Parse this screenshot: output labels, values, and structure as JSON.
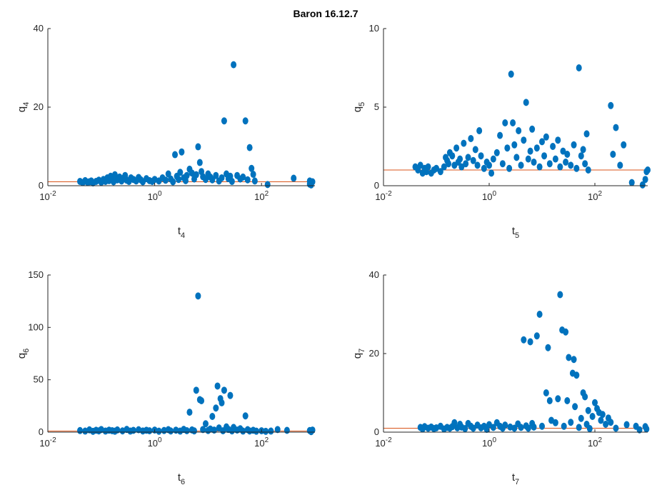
{
  "suptitle": "Baron 16.12.7",
  "colors": {
    "points": "#0072BD",
    "refline": "#D95319",
    "axis": "#262626"
  },
  "chart_data": [
    {
      "type": "scatter",
      "xlabel": {
        "base": "t",
        "sub": "4"
      },
      "ylabel": {
        "base": "q",
        "sub": "4"
      },
      "xscale": "log",
      "xlim": [
        0.01,
        1000
      ],
      "ylim": [
        0,
        40
      ],
      "yticks": [
        "0",
        "20",
        "40"
      ],
      "xticks": [
        {
          "base": "10",
          "exp": "-2"
        },
        {
          "base": "10",
          "exp": "0"
        },
        {
          "base": "10",
          "exp": "2"
        }
      ],
      "reference_y": 1,
      "points": [
        [
          0.04,
          1.1
        ],
        [
          0.045,
          0.8
        ],
        [
          0.05,
          1.3
        ],
        [
          0.055,
          0.9
        ],
        [
          0.06,
          1.0
        ],
        [
          0.065,
          1.2
        ],
        [
          0.07,
          0.7
        ],
        [
          0.08,
          1.1
        ],
        [
          0.09,
          1.4
        ],
        [
          0.1,
          0.9
        ],
        [
          0.11,
          1.6
        ],
        [
          0.12,
          1.1
        ],
        [
          0.13,
          2.0
        ],
        [
          0.14,
          1.3
        ],
        [
          0.15,
          2.4
        ],
        [
          0.16,
          1.7
        ],
        [
          0.17,
          1.0
        ],
        [
          0.18,
          2.8
        ],
        [
          0.2,
          1.5
        ],
        [
          0.22,
          2.2
        ],
        [
          0.24,
          1.2
        ],
        [
          0.26,
          1.9
        ],
        [
          0.28,
          2.6
        ],
        [
          0.3,
          1.4
        ],
        [
          0.33,
          1.1
        ],
        [
          0.36,
          2.0
        ],
        [
          0.4,
          1.6
        ],
        [
          0.45,
          1.2
        ],
        [
          0.5,
          2.1
        ],
        [
          0.55,
          1.5
        ],
        [
          0.6,
          1.0
        ],
        [
          0.7,
          1.8
        ],
        [
          0.8,
          1.3
        ],
        [
          0.9,
          1.1
        ],
        [
          1.0,
          1.6
        ],
        [
          1.2,
          1.2
        ],
        [
          1.4,
          2.0
        ],
        [
          1.6,
          1.4
        ],
        [
          1.8,
          3.0
        ],
        [
          2.0,
          1.7
        ],
        [
          2.2,
          1.0
        ],
        [
          2.4,
          7.9
        ],
        [
          2.6,
          2.4
        ],
        [
          2.8,
          1.6
        ],
        [
          3.0,
          3.4
        ],
        [
          3.2,
          8.6
        ],
        [
          3.5,
          2.0
        ],
        [
          3.8,
          1.3
        ],
        [
          4.0,
          2.6
        ],
        [
          4.5,
          4.2
        ],
        [
          5.0,
          3.2
        ],
        [
          5.5,
          1.7
        ],
        [
          6.0,
          2.8
        ],
        [
          6.5,
          9.9
        ],
        [
          7.0,
          5.9
        ],
        [
          7.5,
          3.6
        ],
        [
          8.0,
          2.3
        ],
        [
          9.0,
          1.6
        ],
        [
          10,
          3.0
        ],
        [
          11,
          2.2
        ],
        [
          12,
          1.5
        ],
        [
          14,
          2.6
        ],
        [
          16,
          1.2
        ],
        [
          18,
          2.0
        ],
        [
          20,
          16.5
        ],
        [
          22,
          3.0
        ],
        [
          24,
          1.8
        ],
        [
          26,
          2.4
        ],
        [
          28,
          1.1
        ],
        [
          30,
          30.8
        ],
        [
          35,
          2.6
        ],
        [
          40,
          1.7
        ],
        [
          45,
          2.2
        ],
        [
          50,
          16.5
        ],
        [
          55,
          1.5
        ],
        [
          60,
          9.7
        ],
        [
          65,
          4.4
        ],
        [
          70,
          2.9
        ],
        [
          75,
          1.2
        ],
        [
          130,
          0.3
        ],
        [
          400,
          1.9
        ],
        [
          800,
          1.2
        ],
        [
          800,
          0.4
        ],
        [
          850,
          0.2
        ],
        [
          900,
          1.0
        ]
      ]
    },
    {
      "type": "scatter",
      "xlabel": {
        "base": "t",
        "sub": "5"
      },
      "ylabel": {
        "base": "q",
        "sub": "5"
      },
      "xscale": "log",
      "xlim": [
        0.01,
        1000
      ],
      "ylim": [
        0,
        10
      ],
      "yticks": [
        "0",
        "5",
        "10"
      ],
      "xticks": [
        {
          "base": "10",
          "exp": "-2"
        },
        {
          "base": "10",
          "exp": "0"
        },
        {
          "base": "10",
          "exp": "2"
        }
      ],
      "reference_y": 1,
      "points": [
        [
          0.04,
          1.2
        ],
        [
          0.045,
          1.0
        ],
        [
          0.05,
          1.3
        ],
        [
          0.055,
          0.8
        ],
        [
          0.06,
          1.1
        ],
        [
          0.065,
          0.9
        ],
        [
          0.07,
          1.2
        ],
        [
          0.08,
          0.8
        ],
        [
          0.09,
          1.0
        ],
        [
          0.1,
          1.1
        ],
        [
          0.12,
          0.9
        ],
        [
          0.14,
          1.2
        ],
        [
          0.15,
          1.8
        ],
        [
          0.16,
          1.6
        ],
        [
          0.17,
          1.4
        ],
        [
          0.18,
          2.1
        ],
        [
          0.2,
          1.9
        ],
        [
          0.22,
          1.3
        ],
        [
          0.24,
          2.4
        ],
        [
          0.26,
          1.5
        ],
        [
          0.28,
          1.7
        ],
        [
          0.3,
          1.2
        ],
        [
          0.33,
          2.7
        ],
        [
          0.36,
          1.4
        ],
        [
          0.4,
          1.8
        ],
        [
          0.45,
          3.0
        ],
        [
          0.5,
          1.6
        ],
        [
          0.55,
          2.3
        ],
        [
          0.6,
          1.3
        ],
        [
          0.65,
          3.5
        ],
        [
          0.7,
          1.9
        ],
        [
          0.8,
          1.1
        ],
        [
          0.9,
          1.5
        ],
        [
          1.0,
          1.3
        ],
        [
          1.1,
          0.8
        ],
        [
          1.2,
          1.7
        ],
        [
          1.4,
          2.1
        ],
        [
          1.6,
          3.2
        ],
        [
          1.8,
          1.4
        ],
        [
          2.0,
          4.0
        ],
        [
          2.2,
          2.4
        ],
        [
          2.4,
          1.1
        ],
        [
          2.6,
          7.1
        ],
        [
          2.8,
          4.0
        ],
        [
          3.0,
          2.6
        ],
        [
          3.3,
          1.8
        ],
        [
          3.6,
          3.5
        ],
        [
          4.0,
          1.3
        ],
        [
          4.5,
          2.9
        ],
        [
          5.0,
          5.3
        ],
        [
          5.5,
          1.7
        ],
        [
          6.0,
          2.2
        ],
        [
          6.5,
          3.6
        ],
        [
          7.0,
          1.5
        ],
        [
          8.0,
          2.4
        ],
        [
          9.0,
          1.2
        ],
        [
          10,
          2.8
        ],
        [
          11,
          1.9
        ],
        [
          12,
          3.1
        ],
        [
          14,
          1.4
        ],
        [
          16,
          2.5
        ],
        [
          18,
          1.7
        ],
        [
          20,
          2.9
        ],
        [
          22,
          1.2
        ],
        [
          25,
          2.2
        ],
        [
          28,
          1.5
        ],
        [
          30,
          2.0
        ],
        [
          35,
          1.3
        ],
        [
          40,
          2.6
        ],
        [
          45,
          1.1
        ],
        [
          50,
          7.5
        ],
        [
          55,
          1.9
        ],
        [
          60,
          2.3
        ],
        [
          65,
          1.4
        ],
        [
          70,
          3.3
        ],
        [
          75,
          1.0
        ],
        [
          200,
          5.1
        ],
        [
          220,
          2.0
        ],
        [
          250,
          3.7
        ],
        [
          300,
          1.3
        ],
        [
          350,
          2.6
        ],
        [
          500,
          0.2
        ],
        [
          800,
          0.05
        ],
        [
          900,
          0.4
        ],
        [
          950,
          0.9
        ],
        [
          1000,
          1.0
        ]
      ]
    },
    {
      "type": "scatter",
      "xlabel": {
        "base": "t",
        "sub": "6"
      },
      "ylabel": {
        "base": "q",
        "sub": "6"
      },
      "xscale": "log",
      "xlim": [
        0.01,
        1000
      ],
      "ylim": [
        0,
        150
      ],
      "yticks": [
        "0",
        "50",
        "100",
        "150"
      ],
      "xticks": [
        {
          "base": "10",
          "exp": "-2"
        },
        {
          "base": "10",
          "exp": "0"
        },
        {
          "base": "10",
          "exp": "2"
        }
      ],
      "reference_y": 1,
      "points": [
        [
          0.04,
          1.5
        ],
        [
          0.05,
          1.0
        ],
        [
          0.06,
          2.2
        ],
        [
          0.07,
          0.8
        ],
        [
          0.08,
          1.8
        ],
        [
          0.09,
          1.2
        ],
        [
          0.1,
          2.5
        ],
        [
          0.12,
          1.0
        ],
        [
          0.14,
          1.9
        ],
        [
          0.16,
          1.4
        ],
        [
          0.18,
          0.9
        ],
        [
          0.2,
          2.1
        ],
        [
          0.25,
          1.2
        ],
        [
          0.3,
          2.6
        ],
        [
          0.35,
          1.0
        ],
        [
          0.4,
          1.7
        ],
        [
          0.5,
          2.3
        ],
        [
          0.6,
          1.1
        ],
        [
          0.7,
          1.8
        ],
        [
          0.8,
          1.3
        ],
        [
          1.0,
          2.0
        ],
        [
          1.2,
          0.9
        ],
        [
          1.5,
          1.6
        ],
        [
          1.8,
          2.4
        ],
        [
          2.0,
          1.1
        ],
        [
          2.5,
          1.9
        ],
        [
          3.0,
          1.0
        ],
        [
          3.5,
          2.6
        ],
        [
          4.0,
          1.4
        ],
        [
          4.5,
          19.0
        ],
        [
          5.0,
          2.1
        ],
        [
          5.5,
          1.2
        ],
        [
          6.0,
          40.0
        ],
        [
          6.5,
          130.0
        ],
        [
          7.0,
          31.0
        ],
        [
          7.5,
          30.0
        ],
        [
          8.0,
          2.5
        ],
        [
          9.0,
          8.0
        ],
        [
          10,
          1.6
        ],
        [
          11,
          3.0
        ],
        [
          12,
          15.0
        ],
        [
          13,
          2.0
        ],
        [
          14,
          23.0
        ],
        [
          15,
          44.0
        ],
        [
          16,
          4.0
        ],
        [
          17,
          32.0
        ],
        [
          18,
          28.0
        ],
        [
          19,
          1.3
        ],
        [
          20,
          40.0
        ],
        [
          22,
          5.0
        ],
        [
          24,
          2.6
        ],
        [
          26,
          35.0
        ],
        [
          28,
          1.2
        ],
        [
          30,
          4.5
        ],
        [
          35,
          2.0
        ],
        [
          40,
          3.2
        ],
        [
          45,
          1.0
        ],
        [
          50,
          15.5
        ],
        [
          55,
          2.4
        ],
        [
          60,
          1.1
        ],
        [
          70,
          1.8
        ],
        [
          80,
          0.9
        ],
        [
          100,
          1.3
        ],
        [
          120,
          0.8
        ],
        [
          150,
          1.0
        ],
        [
          200,
          2.5
        ],
        [
          300,
          1.7
        ],
        [
          800,
          1.5
        ],
        [
          850,
          0.5
        ],
        [
          900,
          2.0
        ]
      ]
    },
    {
      "type": "scatter",
      "xlabel": {
        "base": "t",
        "sub": "7"
      },
      "ylabel": {
        "base": "q",
        "sub": "7"
      },
      "xscale": "log",
      "xlim": [
        0.01,
        1000
      ],
      "ylim": [
        0,
        40
      ],
      "yticks": [
        "0",
        "20",
        "40"
      ],
      "xticks": [
        {
          "base": "10",
          "exp": "-2"
        },
        {
          "base": "10",
          "exp": "0"
        },
        {
          "base": "10",
          "exp": "2"
        }
      ],
      "reference_y": 1,
      "points": [
        [
          0.05,
          1.2
        ],
        [
          0.055,
          0.8
        ],
        [
          0.06,
          1.4
        ],
        [
          0.07,
          1.0
        ],
        [
          0.08,
          1.3
        ],
        [
          0.09,
          0.9
        ],
        [
          0.1,
          1.1
        ],
        [
          0.12,
          1.5
        ],
        [
          0.14,
          0.8
        ],
        [
          0.16,
          1.2
        ],
        [
          0.18,
          1.0
        ],
        [
          0.2,
          1.4
        ],
        [
          0.22,
          2.4
        ],
        [
          0.25,
          1.1
        ],
        [
          0.28,
          2.0
        ],
        [
          0.3,
          1.3
        ],
        [
          0.35,
          0.9
        ],
        [
          0.4,
          2.2
        ],
        [
          0.45,
          1.5
        ],
        [
          0.5,
          1.0
        ],
        [
          0.6,
          1.8
        ],
        [
          0.7,
          1.1
        ],
        [
          0.8,
          1.5
        ],
        [
          0.9,
          0.7
        ],
        [
          1.0,
          1.9
        ],
        [
          1.2,
          1.2
        ],
        [
          1.4,
          2.4
        ],
        [
          1.6,
          1.5
        ],
        [
          1.8,
          1.0
        ],
        [
          2.0,
          1.8
        ],
        [
          2.5,
          1.3
        ],
        [
          3.0,
          1.0
        ],
        [
          3.5,
          2.1
        ],
        [
          4.0,
          1.2
        ],
        [
          4.5,
          23.5
        ],
        [
          5.0,
          1.6
        ],
        [
          5.5,
          1.0
        ],
        [
          6.0,
          23.0
        ],
        [
          6.5,
          2.2
        ],
        [
          7.0,
          1.3
        ],
        [
          8.0,
          24.5
        ],
        [
          9.0,
          30.0
        ],
        [
          10,
          1.5
        ],
        [
          12,
          10.0
        ],
        [
          13,
          21.5
        ],
        [
          14,
          8.0
        ],
        [
          15,
          3.0
        ],
        [
          18,
          2.4
        ],
        [
          20,
          8.5
        ],
        [
          22,
          35.0
        ],
        [
          24,
          26.0
        ],
        [
          26,
          1.5
        ],
        [
          28,
          25.5
        ],
        [
          30,
          8.0
        ],
        [
          32,
          19.0
        ],
        [
          35,
          2.5
        ],
        [
          38,
          15.0
        ],
        [
          40,
          18.5
        ],
        [
          42,
          6.5
        ],
        [
          45,
          14.5
        ],
        [
          50,
          1.2
        ],
        [
          55,
          3.5
        ],
        [
          60,
          10.0
        ],
        [
          65,
          9.0
        ],
        [
          70,
          2.0
        ],
        [
          75,
          5.5
        ],
        [
          80,
          0.9
        ],
        [
          90,
          4.0
        ],
        [
          100,
          7.5
        ],
        [
          110,
          6.0
        ],
        [
          120,
          5.0
        ],
        [
          130,
          3.0
        ],
        [
          140,
          4.5
        ],
        [
          160,
          2.0
        ],
        [
          180,
          3.6
        ],
        [
          200,
          2.5
        ],
        [
          250,
          1.0
        ],
        [
          400,
          1.9
        ],
        [
          600,
          1.5
        ],
        [
          700,
          0.6
        ],
        [
          900,
          1.4
        ],
        [
          950,
          0.8
        ]
      ]
    }
  ]
}
